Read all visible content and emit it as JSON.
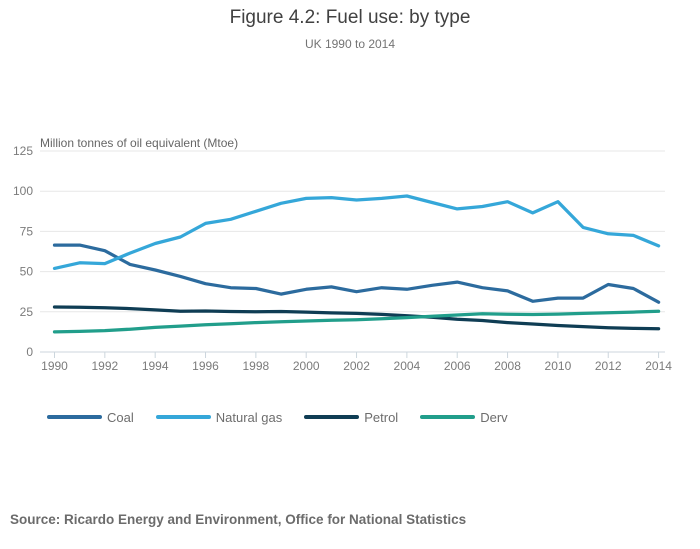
{
  "source": "Source: Ricardo Energy and Environment, Office for National Statistics",
  "chart_data": {
    "type": "line",
    "title": "Figure 4.2: Fuel use: by type",
    "subtitle": "UK 1990 to 2014",
    "unit_label": "Million tonnes of oil equivalent (Mtoe)",
    "xlabel": "",
    "ylabel": "Million tonnes of oil equivalent (Mtoe)",
    "ylim": [
      0,
      125
    ],
    "y_ticks": [
      0,
      25,
      50,
      75,
      100,
      125
    ],
    "grid": "horizontal",
    "legend_position": "bottom-left",
    "x": [
      1990,
      1991,
      1992,
      1993,
      1994,
      1995,
      1996,
      1997,
      1998,
      1999,
      2000,
      2001,
      2002,
      2003,
      2004,
      2005,
      2006,
      2007,
      2008,
      2009,
      2010,
      2011,
      2012,
      2013,
      2014
    ],
    "x_tick_labels": [
      "1990",
      "1992",
      "1994",
      "1996",
      "1998",
      "2000",
      "2002",
      "2004",
      "2006",
      "2008",
      "2010",
      "2012",
      "2014"
    ],
    "series": [
      {
        "name": "Coal",
        "color": "#2c6b9e",
        "values": [
          66.5,
          66.5,
          63,
          54.5,
          51,
          47,
          42.5,
          40,
          39.5,
          36,
          39,
          40.5,
          37.5,
          40,
          39,
          41.5,
          43.5,
          40,
          38,
          31.5,
          33.5,
          33.5,
          42,
          39.5,
          31
        ]
      },
      {
        "name": "Natural gas",
        "color": "#35a7d9",
        "values": [
          52,
          55.5,
          55,
          61.5,
          67.5,
          71.5,
          80,
          82.5,
          87.5,
          92.5,
          95.5,
          96,
          94.5,
          95.5,
          97,
          93,
          89,
          90.5,
          93.5,
          86.5,
          93.5,
          77.5,
          73.5,
          72.5,
          66
        ]
      },
      {
        "name": "Petrol",
        "color": "#0f3d54",
        "values": [
          28,
          27.8,
          27.5,
          27,
          26.2,
          25.4,
          25.5,
          25.2,
          25,
          25.2,
          24.8,
          24.3,
          24,
          23.4,
          22.6,
          21.6,
          20.4,
          19.6,
          18.3,
          17.4,
          16.5,
          15.8,
          15.1,
          14.7,
          14.5
        ]
      },
      {
        "name": "Derv",
        "color": "#219e8b",
        "values": [
          12.5,
          12.8,
          13.3,
          14.2,
          15.3,
          16.1,
          16.9,
          17.6,
          18.3,
          18.8,
          19.3,
          19.7,
          20.1,
          20.7,
          21.4,
          22.2,
          23,
          23.8,
          23.5,
          23.3,
          23.6,
          24,
          24.4,
          24.8,
          25.3
        ]
      }
    ]
  }
}
